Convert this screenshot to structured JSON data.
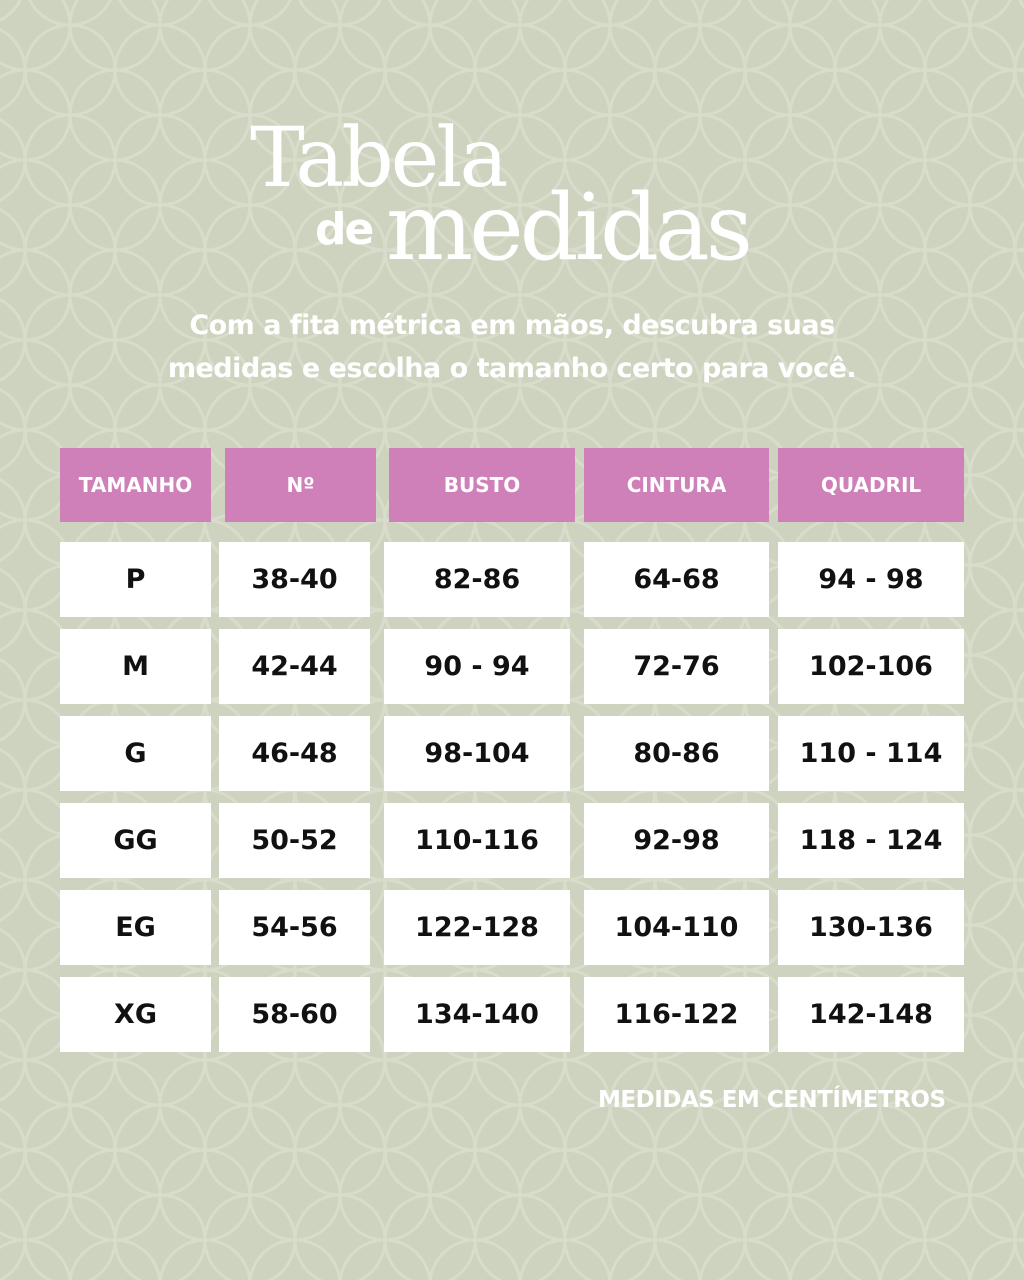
{
  "colors": {
    "background": "#cdd3be",
    "header": "#cf80b9",
    "cell": "#ffffff",
    "text": "#111111"
  },
  "title": {
    "line1": "Tabela",
    "de": "de",
    "line2": "medidas"
  },
  "subtitle": {
    "line1": "Com a fita métrica em mãos, descubra suas",
    "line2": "medidas e escolha o tamanho certo para você."
  },
  "table": {
    "headers": [
      "TAMANHO",
      "Nº",
      "BUSTO",
      "CINTURA",
      "QUADRIL"
    ],
    "rows": [
      [
        "P",
        "38-40",
        "82-86",
        "64-68",
        "94 - 98"
      ],
      [
        "M",
        "42-44",
        "90 - 94",
        "72-76",
        "102-106"
      ],
      [
        "G",
        "46-48",
        "98-104",
        "80-86",
        "110 - 114"
      ],
      [
        "GG",
        "50-52",
        "110-116",
        "92-98",
        "118 - 124"
      ],
      [
        "EG",
        "54-56",
        "122-128",
        "104-110",
        "130-136"
      ],
      [
        "XG",
        "58-60",
        "134-140",
        "116-122",
        "142-148"
      ]
    ]
  },
  "footer": "MEDIDAS EM CENTÍMETROS"
}
